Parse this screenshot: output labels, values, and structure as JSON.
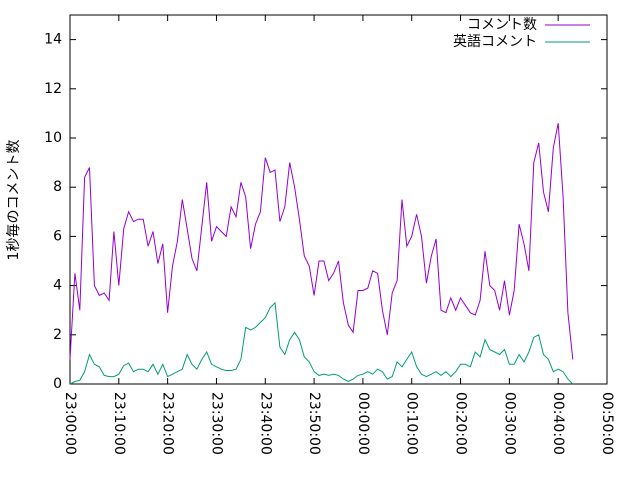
{
  "chart_data": {
    "type": "line",
    "ylabel": "1秒毎のコメント数",
    "x": [
      "23:00:00",
      "23:01:00",
      "23:02:00",
      "23:03:00",
      "23:04:00",
      "23:05:00",
      "23:06:00",
      "23:07:00",
      "23:08:00",
      "23:09:00",
      "23:10:00",
      "23:11:00",
      "23:12:00",
      "23:13:00",
      "23:14:00",
      "23:15:00",
      "23:16:00",
      "23:17:00",
      "23:18:00",
      "23:19:00",
      "23:20:00",
      "23:21:00",
      "23:22:00",
      "23:23:00",
      "23:24:00",
      "23:25:00",
      "23:26:00",
      "23:27:00",
      "23:28:00",
      "23:29:00",
      "23:30:00",
      "23:31:00",
      "23:32:00",
      "23:33:00",
      "23:34:00",
      "23:35:00",
      "23:36:00",
      "23:37:00",
      "23:38:00",
      "23:39:00",
      "23:40:00",
      "23:41:00",
      "23:42:00",
      "23:43:00",
      "23:44:00",
      "23:45:00",
      "23:46:00",
      "23:47:00",
      "23:48:00",
      "23:49:00",
      "23:50:00",
      "23:51:00",
      "23:52:00",
      "23:53:00",
      "23:54:00",
      "23:55:00",
      "23:56:00",
      "23:57:00",
      "23:58:00",
      "23:59:00",
      "00:00:00",
      "00:01:00",
      "00:02:00",
      "00:03:00",
      "00:04:00",
      "00:05:00",
      "00:06:00",
      "00:07:00",
      "00:08:00",
      "00:09:00",
      "00:10:00",
      "00:11:00",
      "00:12:00",
      "00:13:00",
      "00:14:00",
      "00:15:00",
      "00:16:00",
      "00:17:00",
      "00:18:00",
      "00:19:00",
      "00:20:00",
      "00:21:00",
      "00:22:00",
      "00:23:00",
      "00:24:00",
      "00:25:00",
      "00:26:00",
      "00:27:00",
      "00:28:00",
      "00:29:00",
      "00:30:00",
      "00:31:00",
      "00:32:00",
      "00:33:00",
      "00:34:00",
      "00:35:00",
      "00:36:00",
      "00:37:00",
      "00:38:00",
      "00:39:00",
      "00:40:00",
      "00:41:00",
      "00:42:00",
      "00:43:00"
    ],
    "series": [
      {
        "name": "コメント数",
        "color": "#9400d3",
        "values": [
          1.0,
          4.5,
          3.0,
          8.4,
          8.8,
          4.0,
          3.6,
          3.7,
          3.4,
          6.2,
          4.0,
          6.3,
          7.0,
          6.6,
          6.7,
          6.7,
          5.6,
          6.2,
          4.9,
          5.7,
          2.9,
          4.8,
          5.8,
          7.5,
          6.3,
          5.1,
          4.6,
          6.4,
          8.2,
          5.8,
          6.4,
          6.2,
          6.0,
          7.2,
          6.8,
          8.2,
          7.6,
          5.5,
          6.5,
          7.0,
          9.2,
          8.6,
          8.7,
          6.6,
          7.2,
          9.0,
          8.0,
          6.7,
          5.2,
          4.8,
          3.6,
          5.0,
          5.0,
          4.2,
          4.5,
          5.0,
          3.3,
          2.4,
          2.1,
          3.8,
          3.8,
          3.9,
          4.6,
          4.5,
          3.0,
          2.0,
          3.7,
          4.2,
          7.5,
          5.6,
          6.0,
          6.9,
          6.0,
          4.1,
          5.2,
          5.9,
          3.0,
          2.9,
          3.5,
          3.0,
          3.5,
          3.2,
          2.9,
          2.8,
          3.4,
          5.4,
          4.0,
          3.8,
          3.0,
          4.2,
          2.8,
          3.8,
          6.5,
          5.7,
          4.6,
          9.0,
          9.8,
          7.8,
          7.0,
          9.6,
          10.6,
          7.6,
          2.9,
          1.0
        ]
      },
      {
        "name": "英語コメント",
        "color": "#009e73",
        "values": [
          0.0,
          0.1,
          0.15,
          0.5,
          1.2,
          0.8,
          0.7,
          0.35,
          0.3,
          0.3,
          0.4,
          0.75,
          0.85,
          0.5,
          0.6,
          0.6,
          0.5,
          0.8,
          0.4,
          0.8,
          0.3,
          0.4,
          0.5,
          0.6,
          1.2,
          0.8,
          0.6,
          1.0,
          1.3,
          0.8,
          0.7,
          0.6,
          0.55,
          0.55,
          0.6,
          1.0,
          2.3,
          2.2,
          2.3,
          2.5,
          2.7,
          3.1,
          3.3,
          1.5,
          1.2,
          1.8,
          2.1,
          1.8,
          1.1,
          0.9,
          0.5,
          0.35,
          0.4,
          0.35,
          0.4,
          0.35,
          0.2,
          0.1,
          0.2,
          0.35,
          0.4,
          0.5,
          0.4,
          0.6,
          0.5,
          0.2,
          0.3,
          0.9,
          0.7,
          1.0,
          1.3,
          0.7,
          0.4,
          0.3,
          0.4,
          0.5,
          0.35,
          0.5,
          0.3,
          0.5,
          0.8,
          0.8,
          0.7,
          1.3,
          1.1,
          1.8,
          1.4,
          1.3,
          1.2,
          1.4,
          0.8,
          0.8,
          1.2,
          0.9,
          1.3,
          1.9,
          2.0,
          1.2,
          1.0,
          0.5,
          0.6,
          0.5,
          0.2,
          0.0
        ]
      }
    ],
    "xlim": [
      "23:00:00",
      "00:50:00"
    ],
    "xticks": [
      "23:00:00",
      "23:10:00",
      "23:20:00",
      "23:30:00",
      "23:40:00",
      "23:50:00",
      "00:00:00",
      "00:10:00",
      "00:20:00",
      "00:30:00",
      "00:40:00",
      "00:50:00"
    ],
    "ylim": [
      0,
      15
    ],
    "yticks": [
      0,
      2,
      4,
      6,
      8,
      10,
      12,
      14
    ],
    "legend": "top-right"
  }
}
